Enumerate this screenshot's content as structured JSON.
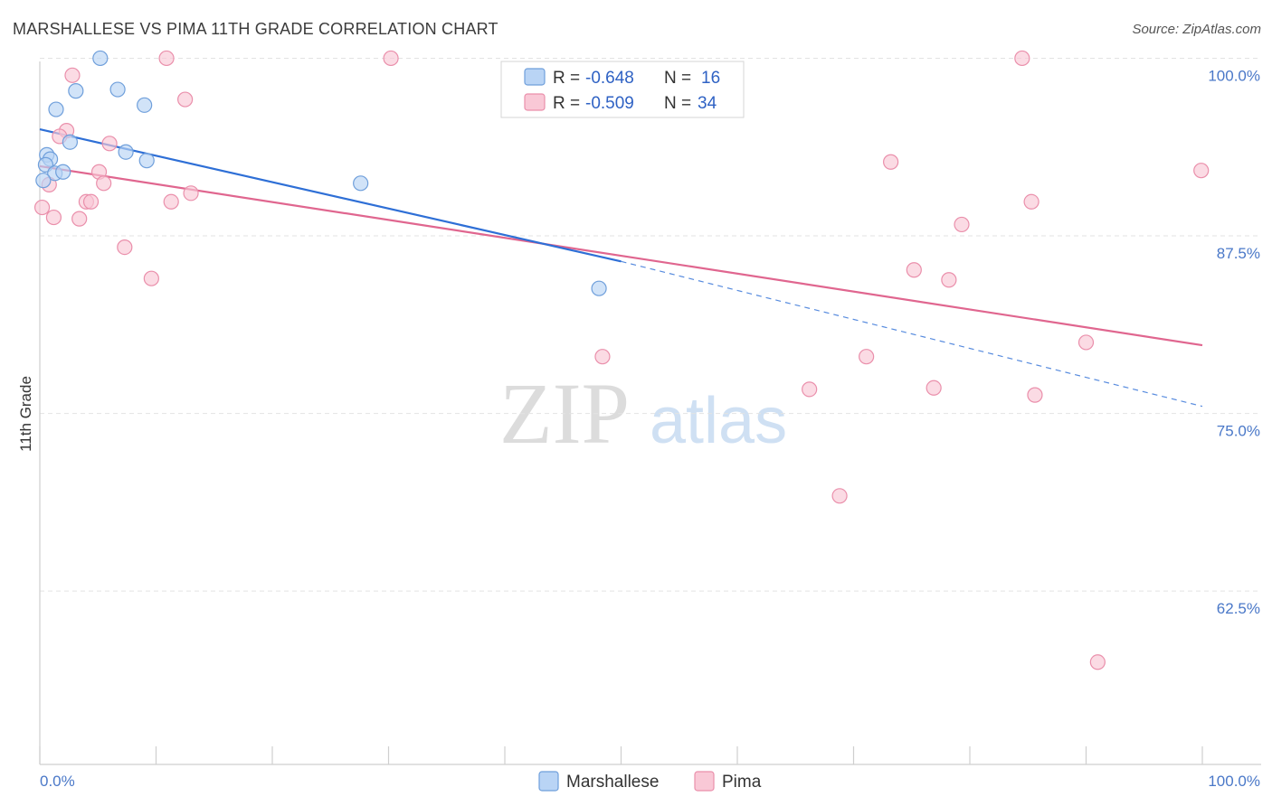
{
  "title": "MARSHALLESE VS PIMA 11TH GRADE CORRELATION CHART",
  "source": "Source: ZipAtlas.com",
  "watermark": {
    "part1": "ZIP",
    "part2": "atlas"
  },
  "colors": {
    "marshallese_fill": "#b9d4f5",
    "marshallese_stroke": "#6f9fdb",
    "marshallese_line": "#2e6fd6",
    "pima_fill": "#f9c8d6",
    "pima_stroke": "#ea8fab",
    "pima_line": "#e0668f",
    "tick_text": "#4a78c8",
    "grid": "#e3e3e3"
  },
  "stats_legend": [
    {
      "series": "Marshallese",
      "r_label": "R =",
      "r_value": "-0.648",
      "n_label": "N =",
      "n_value": "16"
    },
    {
      "series": "Pima",
      "r_label": "R =",
      "r_value": "-0.509",
      "n_label": "N =",
      "n_value": "34"
    }
  ],
  "chart_data": {
    "type": "scatter",
    "title": "MARSHALLESE VS PIMA 11TH GRADE CORRELATION CHART",
    "xlabel": "",
    "ylabel": "11th Grade",
    "xlim": [
      0,
      100
    ],
    "ylim": [
      51.5,
      102.5
    ],
    "x_tick_labels": [
      {
        "value": 0,
        "label": "0.0%"
      },
      {
        "value": 100,
        "label": "100.0%"
      }
    ],
    "y_tick_labels": [
      {
        "value": 100,
        "label": "100.0%"
      },
      {
        "value": 87.5,
        "label": "87.5%"
      },
      {
        "value": 75,
        "label": "75.0%"
      },
      {
        "value": 62.5,
        "label": "62.5%"
      }
    ],
    "y_gridlines": [
      101.2,
      88.7,
      76.2,
      63.7
    ],
    "x_minor_ticks": [
      0,
      10,
      20,
      30,
      40,
      50,
      60,
      70,
      80,
      90,
      100
    ],
    "legend": [
      "Marshallese",
      "Pima"
    ],
    "series": [
      {
        "name": "Marshallese",
        "points": [
          {
            "x": 5.2,
            "y": 101.2
          },
          {
            "x": 3.1,
            "y": 98.9
          },
          {
            "x": 6.7,
            "y": 99.0
          },
          {
            "x": 1.4,
            "y": 97.6
          },
          {
            "x": 9.0,
            "y": 97.9
          },
          {
            "x": 2.6,
            "y": 95.3
          },
          {
            "x": 0.6,
            "y": 94.4
          },
          {
            "x": 0.9,
            "y": 94.1
          },
          {
            "x": 7.4,
            "y": 94.6
          },
          {
            "x": 9.2,
            "y": 94.0
          },
          {
            "x": 0.5,
            "y": 93.7
          },
          {
            "x": 1.3,
            "y": 93.1
          },
          {
            "x": 2.0,
            "y": 93.2
          },
          {
            "x": 27.6,
            "y": 92.4
          },
          {
            "x": 48.1,
            "y": 85.0
          },
          {
            "x": 0.3,
            "y": 92.6
          }
        ],
        "trend": {
          "x1": 0,
          "y1": 96.2,
          "x2": 50,
          "y2": 86.9,
          "dash_to_x": 100,
          "dash_to_y": 76.7
        }
      },
      {
        "name": "Pima",
        "points": [
          {
            "x": 10.9,
            "y": 101.2
          },
          {
            "x": 30.2,
            "y": 101.2
          },
          {
            "x": 84.5,
            "y": 101.2
          },
          {
            "x": 2.8,
            "y": 100.0
          },
          {
            "x": 12.5,
            "y": 98.3
          },
          {
            "x": 2.3,
            "y": 96.1
          },
          {
            "x": 1.7,
            "y": 95.7
          },
          {
            "x": 6.0,
            "y": 95.2
          },
          {
            "x": 73.2,
            "y": 93.9
          },
          {
            "x": 99.9,
            "y": 93.3
          },
          {
            "x": 5.1,
            "y": 93.2
          },
          {
            "x": 5.5,
            "y": 92.4
          },
          {
            "x": 0.8,
            "y": 92.3
          },
          {
            "x": 13.0,
            "y": 91.7
          },
          {
            "x": 4.0,
            "y": 91.1
          },
          {
            "x": 4.4,
            "y": 91.1
          },
          {
            "x": 11.3,
            "y": 91.1
          },
          {
            "x": 85.3,
            "y": 91.1
          },
          {
            "x": 0.2,
            "y": 90.7
          },
          {
            "x": 1.2,
            "y": 90.0
          },
          {
            "x": 3.4,
            "y": 89.9
          },
          {
            "x": 79.3,
            "y": 89.5
          },
          {
            "x": 7.3,
            "y": 87.9
          },
          {
            "x": 75.2,
            "y": 86.3
          },
          {
            "x": 9.6,
            "y": 85.7
          },
          {
            "x": 78.2,
            "y": 85.6
          },
          {
            "x": 90.0,
            "y": 81.2
          },
          {
            "x": 48.4,
            "y": 80.2
          },
          {
            "x": 71.1,
            "y": 80.2
          },
          {
            "x": 66.2,
            "y": 77.9
          },
          {
            "x": 76.9,
            "y": 78.0
          },
          {
            "x": 85.6,
            "y": 77.5
          },
          {
            "x": 68.8,
            "y": 70.4
          },
          {
            "x": 91.0,
            "y": 58.7
          }
        ],
        "trend": {
          "x1": 0,
          "y1": 93.6,
          "x2": 100,
          "y2": 81.0
        }
      }
    ]
  }
}
